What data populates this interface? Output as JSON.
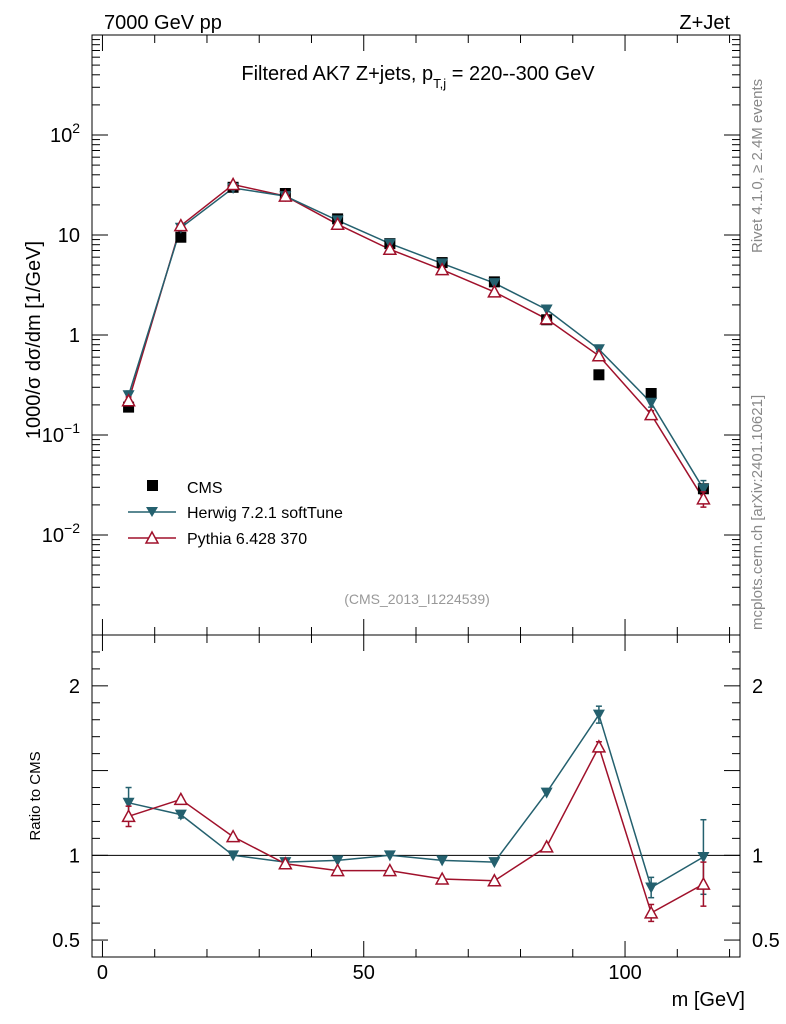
{
  "header": {
    "energy_label": "7000 GeV pp",
    "process_label": "Z+Jet",
    "side_label_top": "Rivet 4.1.0, ≥ 2.4M events",
    "side_label_bottom": "mcplots.cern.ch [arXiv:2401.10621]"
  },
  "chart_data": [
    {
      "type": "scatter",
      "panel": "main",
      "title": "Filtered AK7 Z+jets, p_T,j = 220--300 GeV",
      "title_prefix": "Filtered AK7 Z+jets, p",
      "title_sub": "T,j",
      "title_suffix": " = 220--300 GeV",
      "ylabel": "1000/σ  dσ/dm [1/GeV]",
      "yscale": "log",
      "ylim": [
        0.001,
        1000
      ],
      "xlim": [
        -2,
        122
      ],
      "yticks": [
        {
          "value": 0.01,
          "label": "10",
          "exp": "−2"
        },
        {
          "value": 0.1,
          "label": "10",
          "exp": "−1"
        },
        {
          "value": 1,
          "label": "1",
          "exp": ""
        },
        {
          "value": 10,
          "label": "10",
          "exp": ""
        },
        {
          "value": 100,
          "label": "10",
          "exp": "2"
        }
      ],
      "watermark": "(CMS_2013_I1224539)",
      "x": [
        5,
        15,
        25,
        35,
        45,
        55,
        65,
        75,
        85,
        95,
        105,
        115
      ],
      "series": [
        {
          "name": "CMS",
          "style": "marker",
          "values": [
            0.19,
            9.5,
            30,
            26,
            14.5,
            8.2,
            5.3,
            3.4,
            1.42,
            0.4,
            0.26,
            0.029
          ]
        },
        {
          "name": "Herwig 7.2.1 softTune",
          "style": "line",
          "values": [
            0.25,
            11.8,
            29.5,
            24.5,
            14,
            8.2,
            5.2,
            3.3,
            1.8,
            0.72,
            0.21,
            0.029
          ],
          "err": [
            0.025,
            0,
            0,
            0,
            0,
            0,
            0,
            0,
            0,
            0.04,
            0.02,
            0.006
          ]
        },
        {
          "name": "Pythia 6.428 370",
          "style": "line",
          "values": [
            0.22,
            12.4,
            32,
            24.5,
            12.8,
            7.2,
            4.5,
            2.7,
            1.45,
            0.62,
            0.16,
            0.023
          ],
          "err": [
            0.02,
            0,
            0,
            0,
            0,
            0,
            0,
            0,
            0,
            0,
            0.015,
            0.004
          ]
        }
      ],
      "legend": {
        "position": "bottom-left",
        "entries": [
          "CMS",
          "Herwig 7.2.1 softTune",
          "Pythia 6.428 370"
        ]
      }
    },
    {
      "type": "line",
      "panel": "ratio",
      "ylabel": "Ratio to CMS",
      "xlabel": "m [GeV]",
      "ylim": [
        0.4,
        2.3
      ],
      "xlim": [
        -2,
        122
      ],
      "xticks": [
        0,
        50,
        100
      ],
      "yticks": [
        0.5,
        1,
        2
      ],
      "reference_line": 1,
      "x": [
        5,
        15,
        25,
        35,
        45,
        55,
        65,
        75,
        85,
        95,
        105,
        115
      ],
      "series": [
        {
          "name": "Herwig 7.2.1 softTune",
          "values": [
            1.31,
            1.24,
            1.0,
            0.96,
            0.97,
            1.0,
            0.97,
            0.96,
            1.37,
            1.83,
            0.81,
            0.99
          ],
          "err": [
            0.09,
            0.02,
            0,
            0,
            0,
            0,
            0,
            0,
            0,
            0.05,
            0.06,
            0.22
          ]
        },
        {
          "name": "Pythia 6.428 370",
          "values": [
            1.23,
            1.33,
            1.11,
            0.95,
            0.91,
            0.91,
            0.86,
            0.85,
            1.05,
            1.64,
            0.66,
            0.83
          ],
          "err": [
            0.06,
            0,
            0,
            0,
            0,
            0,
            0,
            0,
            0,
            0.03,
            0.05,
            0.13
          ]
        }
      ]
    }
  ],
  "colors": {
    "data": "#000000",
    "herwig": "#24606e",
    "pythia": "#a0112b",
    "watermark": "#999999",
    "side_label": "#888888"
  }
}
